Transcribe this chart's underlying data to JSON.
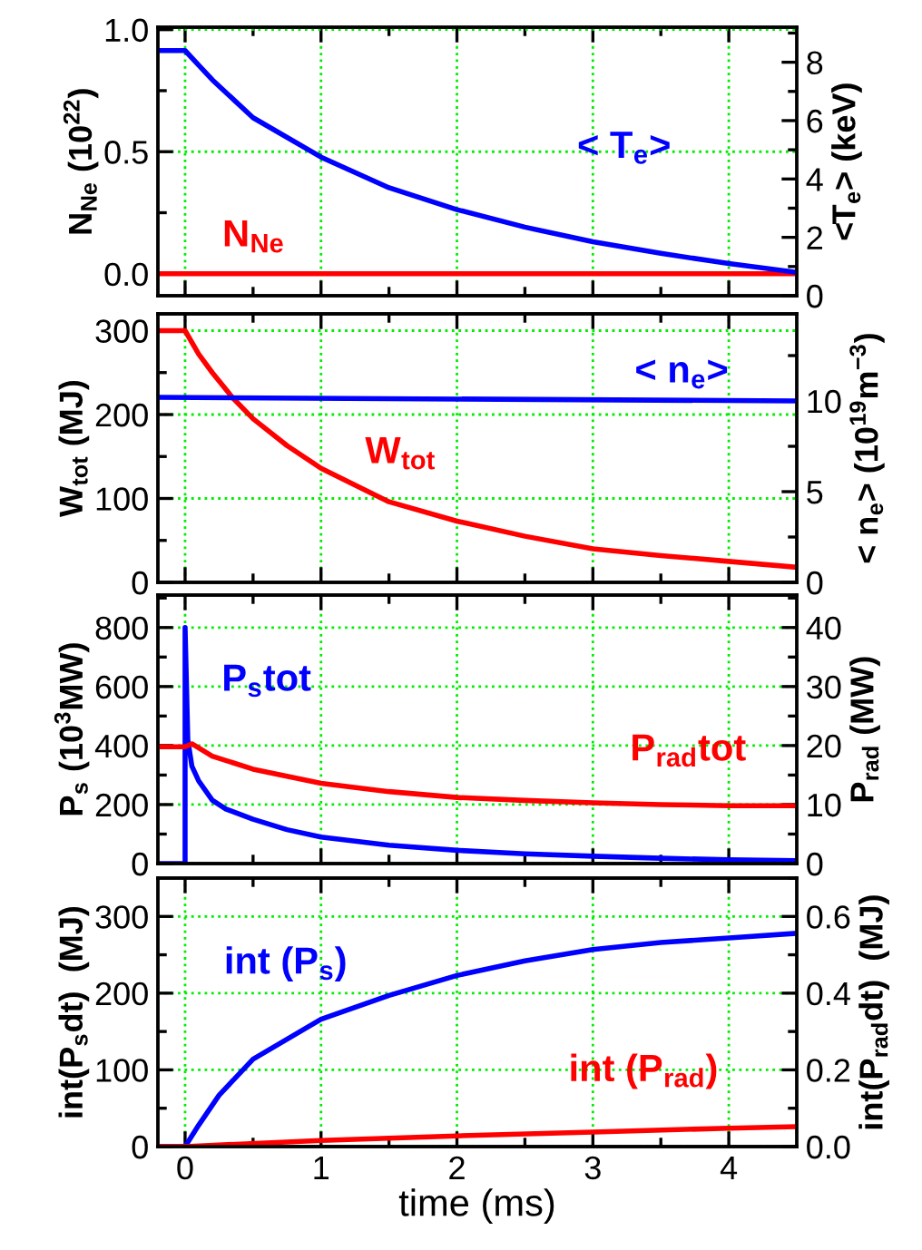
{
  "chart_data": [
    {
      "type": "line",
      "ylabel": "N$_{Ne}$ (10$^{22}$)",
      "y2label": "<T$_{e}$> (keV)",
      "grid": true,
      "tick_labels": "y",
      "xlim": [
        -0.2,
        4.5
      ],
      "xticks": [
        0,
        1,
        2,
        3,
        4,
        {
          "value": 0.5,
          "label": null
        },
        {
          "value": 1.5,
          "label": null
        },
        {
          "value": 2.5,
          "label": null
        },
        {
          "value": 3.5,
          "label": null
        }
      ],
      "ylim": [
        -0.09,
        1.01
      ],
      "yticks": [
        {
          "value": 0,
          "label": "0.0"
        },
        0.5,
        {
          "value": 1,
          "label": "1.0"
        },
        {
          "value": 0.25,
          "label": null
        },
        {
          "value": 0.75,
          "label": null
        }
      ],
      "y2lim": [
        0,
        9.2
      ],
      "y2ticks": [
        0,
        2,
        4,
        6,
        8,
        {
          "value": 1,
          "label": null
        },
        {
          "value": 3,
          "label": null
        },
        {
          "value": 5,
          "label": null
        },
        {
          "value": 7,
          "label": null
        },
        {
          "value": 9,
          "label": null
        }
      ],
      "series": [
        {
          "name": "N$_{Ne}$",
          "color": "#ff0000",
          "x": [
            -0.2,
            4.5
          ],
          "values": [
            0,
            0
          ]
        },
        {
          "name": "< T$_{e}$>",
          "color": "#0000ff",
          "axis": "y2",
          "x": [
            -0.2,
            0,
            0.1,
            0.2,
            0.5,
            1,
            1.5,
            2,
            2.5,
            3,
            3.5,
            4,
            4.5
          ],
          "values": [
            8.4,
            8.4,
            7.9,
            7.4,
            6.1,
            4.75,
            3.7,
            2.95,
            2.35,
            1.85,
            1.45,
            1.1,
            0.8
          ]
        }
      ]
    },
    {
      "type": "line",
      "ylabel": "W$_{tot}$ (MJ)",
      "y2label": "< n$_{e}$> (10$^{19}$m$^{−3}$)",
      "grid": true,
      "tick_labels": "y",
      "xlim": [
        -0.2,
        4.5
      ],
      "xticks": [
        0,
        1,
        2,
        3,
        4,
        {
          "value": 0.5,
          "label": null
        },
        {
          "value": 1.5,
          "label": null
        },
        {
          "value": 2.5,
          "label": null
        },
        {
          "value": 3.5,
          "label": null
        }
      ],
      "ylim": [
        0,
        320
      ],
      "yticks": [
        0,
        100,
        200,
        300,
        {
          "value": 50,
          "label": null
        },
        {
          "value": 150,
          "label": null
        },
        {
          "value": 250,
          "label": null
        }
      ],
      "y2lim": [
        0,
        14.8
      ],
      "y2ticks": [
        0,
        5,
        10,
        {
          "value": 2.5,
          "label": null
        },
        {
          "value": 7.5,
          "label": null
        },
        {
          "value": 12.5,
          "label": null
        }
      ],
      "series": [
        {
          "name": "< n$_{e}$>",
          "color": "#0000ff",
          "axis": "y2",
          "x": [
            -0.2,
            4.5
          ],
          "values": [
            10.2,
            10.0
          ]
        },
        {
          "name": "W$_{tot}$",
          "color": "#ff0000",
          "x": [
            -0.2,
            0,
            0.1,
            0.2,
            0.35,
            0.5,
            0.75,
            1,
            1.5,
            2,
            2.5,
            3,
            3.5,
            4,
            4.5
          ],
          "values": [
            300,
            300,
            272,
            250,
            220,
            195,
            163,
            136,
            96,
            73,
            55,
            40,
            32,
            25,
            18
          ]
        }
      ]
    },
    {
      "type": "line",
      "ylabel": "P$_{s}$ (10$^{3}$MW)",
      "y2label": "P$_{rad}$ (MW)",
      "grid": true,
      "tick_labels": "y",
      "xlim": [
        -0.2,
        4.5
      ],
      "xticks": [
        0,
        1,
        2,
        3,
        4,
        {
          "value": 0.5,
          "label": null
        },
        {
          "value": 1.5,
          "label": null
        },
        {
          "value": 2.5,
          "label": null
        },
        {
          "value": 3.5,
          "label": null
        }
      ],
      "ylim": [
        0,
        910
      ],
      "yticks": [
        0,
        200,
        400,
        600,
        800,
        {
          "value": 100,
          "label": null
        },
        {
          "value": 300,
          "label": null
        },
        {
          "value": 500,
          "label": null
        },
        {
          "value": 700,
          "label": null
        },
        {
          "value": 900,
          "label": null
        }
      ],
      "y2lim": [
        0,
        45.5
      ],
      "y2ticks": [
        0,
        10,
        20,
        30,
        40,
        {
          "value": 5,
          "label": null
        },
        {
          "value": 15,
          "label": null
        },
        {
          "value": 25,
          "label": null
        },
        {
          "value": 35,
          "label": null
        },
        {
          "value": 45,
          "label": null
        }
      ],
      "series": [
        {
          "name": "P$_{s}$tot",
          "color": "#0000ff",
          "x": [
            -0.2,
            0,
            0,
            0.02,
            0.05,
            0.1,
            0.2,
            0.3,
            0.5,
            0.75,
            1,
            1.5,
            2,
            2.5,
            3,
            3.5,
            4,
            4.5
          ],
          "values": [
            0,
            0,
            800,
            420,
            330,
            280,
            215,
            185,
            150,
            115,
            90,
            62,
            45,
            33,
            25,
            18,
            13,
            10
          ]
        },
        {
          "name": "P$_{rad}$tot",
          "color": "#ff0000",
          "axis": "y2",
          "x": [
            -0.2,
            0,
            0.05,
            0.2,
            0.5,
            1,
            1.5,
            2,
            2.5,
            3,
            3.5,
            4,
            4.5
          ],
          "values": [
            19.8,
            19.8,
            20.3,
            18.2,
            16.0,
            13.6,
            12.2,
            11.2,
            10.7,
            10.3,
            10.0,
            9.8,
            9.8
          ]
        }
      ]
    },
    {
      "type": "line",
      "xlabel": "time (ms)",
      "ylabel": "int(P$_{s}$dt)  (MJ)",
      "y2label": "int(P$_{rad}$dt)  (MJ)",
      "grid": true,
      "xlim": [
        -0.2,
        4.5
      ],
      "xticks": [
        0,
        1,
        2,
        3,
        4,
        {
          "value": 0.5,
          "label": null
        },
        {
          "value": 1.5,
          "label": null
        },
        {
          "value": 2.5,
          "label": null
        },
        {
          "value": 3.5,
          "label": null
        }
      ],
      "ylim": [
        0,
        350
      ],
      "yticks": [
        0,
        100,
        200,
        300,
        {
          "value": 50,
          "label": null
        },
        {
          "value": 150,
          "label": null
        },
        {
          "value": 250,
          "label": null
        }
      ],
      "y2lim": [
        0,
        0.7
      ],
      "y2ticks": [
        {
          "value": 0,
          "label": "0.0"
        },
        0.2,
        0.4,
        0.6,
        {
          "value": 0.1,
          "label": null
        },
        {
          "value": 0.3,
          "label": null
        },
        {
          "value": 0.5,
          "label": null
        },
        {
          "value": 0.7,
          "label": null
        }
      ],
      "series": [
        {
          "name": "int (P$_{s}$)",
          "color": "#0000ff",
          "x": [
            -0.2,
            0,
            0.1,
            0.25,
            0.5,
            1,
            1.5,
            2,
            2.5,
            3,
            3.5,
            4,
            4.5
          ],
          "values": [
            0,
            0,
            28,
            67,
            114,
            166,
            197,
            223,
            242,
            257,
            266,
            272,
            278
          ]
        },
        {
          "name": "int (P$_{rad}$)",
          "color": "#ff0000",
          "axis": "y2",
          "x": [
            -0.2,
            0,
            1,
            2,
            3,
            4,
            4.5
          ],
          "values": [
            0,
            0,
            0.016,
            0.028,
            0.038,
            0.048,
            0.052
          ]
        }
      ]
    }
  ]
}
